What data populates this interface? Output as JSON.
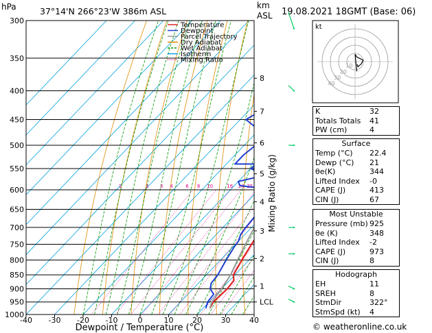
{
  "header": {
    "hpa_label": "hPa",
    "location": "37°14'N  266°23'W  386m  ASL",
    "km_label": "km",
    "asl_label": "ASL",
    "datetime": "19.08.2021  18GMT  (Base: 06)"
  },
  "footer": {
    "credit": "© weatheronline.co.uk"
  },
  "chart_data": {
    "type": "line",
    "title": "",
    "xlabel": "Dewpoint / Temperature (°C)",
    "ylabel": "hPa",
    "right_ylabel": "Mixing Ratio (g/kg)",
    "xlim": [
      -40,
      40
    ],
    "ylim": [
      1000,
      300
    ],
    "x_ticks": [
      "-40",
      "-30",
      "-20",
      "-10",
      "0",
      "10",
      "20",
      "30",
      "40"
    ],
    "pressure_levels": [
      "300",
      "350",
      "400",
      "450",
      "500",
      "550",
      "600",
      "650",
      "700",
      "750",
      "800",
      "850",
      "900",
      "950",
      "1000"
    ],
    "km_ticks": [
      {
        "p": 380,
        "label": "8"
      },
      {
        "p": 435,
        "label": "7"
      },
      {
        "p": 495,
        "label": "6"
      },
      {
        "p": 562,
        "label": "5"
      },
      {
        "p": 630,
        "label": "4"
      },
      {
        "p": 710,
        "label": "3"
      },
      {
        "p": 795,
        "label": "2"
      },
      {
        "p": 890,
        "label": "1"
      },
      {
        "p": 950,
        "label": "LCL"
      }
    ],
    "mixing_ratio_labels": [
      "1",
      "2",
      "3",
      "4",
      "6",
      "8",
      "10",
      "16",
      "20",
      "25"
    ],
    "mixing_ratio_x": [
      -7,
      2.5,
      7.5,
      11,
      16.5,
      20.5,
      24.5,
      31.5,
      35.5,
      38.5
    ],
    "legend": [
      "Temperature",
      "Dewpoint",
      "Parcel Trajectory",
      "Dry Adiabat",
      "Wet Adiabat",
      "Isotherm",
      "Mixing Ratio"
    ],
    "series": [
      {
        "name": "Temperature",
        "points": [
          [
            22.4,
            975
          ],
          [
            21.5,
            950
          ],
          [
            22.0,
            900
          ],
          [
            21.5,
            870
          ],
          [
            19.5,
            850
          ],
          [
            17.5,
            800
          ],
          [
            16,
            760
          ],
          [
            14.5,
            720
          ],
          [
            12.5,
            680
          ],
          [
            10.5,
            640
          ],
          [
            9.5,
            610
          ],
          [
            8,
            580
          ],
          [
            6.5,
            550
          ],
          [
            4.5,
            520
          ],
          [
            1.5,
            500
          ],
          [
            0.5,
            480
          ],
          [
            -3,
            450
          ],
          [
            -8,
            420
          ],
          [
            -12,
            400
          ],
          [
            -17,
            370
          ],
          [
            -21,
            350
          ],
          [
            -25,
            330
          ],
          [
            -29,
            310
          ],
          [
            -31,
            300
          ]
        ]
      },
      {
        "name": "Dewpoint",
        "points": [
          [
            21,
            975
          ],
          [
            19.5,
            950
          ],
          [
            19,
            920
          ],
          [
            16,
            900
          ],
          [
            14.5,
            880
          ],
          [
            14,
            850
          ],
          [
            12,
            800
          ],
          [
            10.5,
            760
          ],
          [
            10,
            740
          ],
          [
            8.5,
            720
          ],
          [
            8,
            700
          ],
          [
            7.5,
            670
          ],
          [
            6.5,
            650
          ],
          [
            5,
            630
          ],
          [
            4,
            610
          ],
          [
            -1,
            595
          ],
          [
            -8,
            590
          ],
          [
            -10,
            580
          ],
          [
            -5,
            570
          ],
          [
            -5,
            560
          ],
          [
            -10,
            550
          ],
          [
            -9,
            540
          ],
          [
            -17,
            540
          ],
          [
            -17,
            520
          ],
          [
            -16,
            500
          ],
          [
            -10,
            495
          ],
          [
            -28,
            450
          ],
          [
            -22,
            410
          ],
          [
            -22,
            400
          ],
          [
            -28,
            380
          ],
          [
            -35,
            375
          ],
          [
            -27,
            360
          ],
          [
            -26,
            350
          ],
          [
            -34,
            340
          ],
          [
            -30,
            320
          ],
          [
            -38,
            300
          ]
        ]
      },
      {
        "name": "Parcel Trajectory",
        "points": [
          [
            22.4,
            975
          ],
          [
            21,
            950
          ],
          [
            20,
            900
          ],
          [
            18.5,
            850
          ],
          [
            16,
            800
          ],
          [
            14,
            760
          ],
          [
            12,
            720
          ],
          [
            10,
            680
          ],
          [
            8,
            640
          ],
          [
            6.5,
            610
          ],
          [
            4.5,
            580
          ],
          [
            3,
            550
          ],
          [
            1,
            520
          ],
          [
            -0.5,
            500
          ],
          [
            -3,
            480
          ],
          [
            -6,
            450
          ],
          [
            -10,
            420
          ],
          [
            -14,
            400
          ],
          [
            -18,
            380
          ],
          [
            -21,
            370
          ]
        ]
      }
    ],
    "isotherms": [
      -110,
      -100,
      -90,
      -80,
      -70,
      -60,
      -50,
      -40,
      -30,
      -20,
      -10,
      0,
      10,
      20,
      30,
      40
    ],
    "dry_adiabats_theta_K": [
      250,
      260,
      270,
      280,
      290,
      300,
      310,
      320,
      330,
      340,
      350,
      360,
      370,
      380,
      390,
      400,
      410,
      420,
      430,
      440,
      450,
      460,
      470,
      480,
      490,
      500,
      510,
      520,
      530,
      540,
      550,
      560
    ],
    "wet_adiabats_T1000_C": [
      -20,
      -16,
      -12,
      -8,
      -4,
      0,
      4,
      8,
      12,
      16,
      20,
      24,
      28,
      32,
      36,
      40
    ]
  },
  "hodograph": {
    "label": "kt",
    "ring_labels": [
      "10",
      "20",
      "30",
      "40"
    ],
    "trace_dir_deg": [
      322,
      330,
      290,
      260,
      200,
      180,
      350
    ],
    "trace_speed_kt": [
      4,
      7,
      8,
      10,
      6,
      9,
      12
    ]
  },
  "stats_table": {
    "indices": [
      {
        "label": "K",
        "value": "32"
      },
      {
        "label": "Totals Totals",
        "value": "41"
      },
      {
        "label": "PW (cm)",
        "value": "4"
      }
    ],
    "surface": {
      "title": "Surface",
      "rows": [
        {
          "label": "Temp (°C)",
          "value": "22.4"
        },
        {
          "label": "Dewp (°C)",
          "value": "21"
        },
        {
          "label": "θe(K)",
          "value": "344"
        },
        {
          "label": "Lifted Index",
          "value": "-0"
        },
        {
          "label": "CAPE (J)",
          "value": "413"
        },
        {
          "label": "CIN (J)",
          "value": "67"
        }
      ]
    },
    "most_unstable": {
      "title": "Most Unstable",
      "rows": [
        {
          "label": "Pressure (mb)",
          "value": "925"
        },
        {
          "label": "θe (K)",
          "value": "348"
        },
        {
          "label": "Lifted Index",
          "value": "-2"
        },
        {
          "label": "CAPE (J)",
          "value": "973"
        },
        {
          "label": "CIN (J)",
          "value": "8"
        }
      ]
    },
    "hodograph": {
      "title": "Hodograph",
      "rows": [
        {
          "label": "EH",
          "value": "11"
        },
        {
          "label": "SREH",
          "value": "8"
        },
        {
          "label": "StmDir",
          "value": "322°"
        },
        {
          "label": "StmSpd (kt)",
          "value": "4"
        }
      ]
    }
  },
  "colors": {
    "temperature": "#dd2222",
    "dewpoint": "#1f3fd0",
    "parcel": "#999999",
    "dry_adiabat": "#e08a00",
    "wet_adiabat": "#009900",
    "isotherm": "#00a0e0",
    "mixing_ratio": "#e0008a",
    "wind_barb": "#00cc66"
  }
}
